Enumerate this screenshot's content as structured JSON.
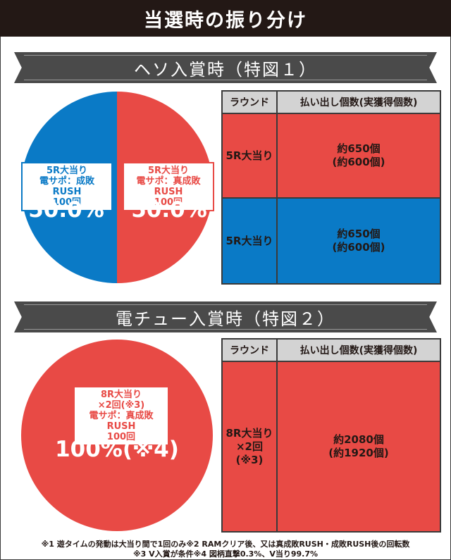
{
  "title": "当選時の振り分け",
  "section1": {
    "heading": "ヘソ入賞時（特図１）",
    "left_slice": {
      "label": "5R大当り\n電サポ：成敗RUSH\n100回",
      "percent": "50.0%",
      "share": 0.5,
      "color": "#0a7ac6"
    },
    "right_slice": {
      "label": "5R大当り\n電サポ：真成敗RUSH\n100回",
      "percent": "50.0%",
      "share": 0.5,
      "color": "#e84a45"
    },
    "table": {
      "headers": [
        "ラウンド",
        "払い出し個数(実獲得個数)"
      ],
      "rows": [
        {
          "round": "5R大当り",
          "payout": "約650個\n(約600個)",
          "color": "red"
        },
        {
          "round": "5R大当り",
          "payout": "約650個\n(約600個)",
          "color": "blue"
        }
      ]
    }
  },
  "section2": {
    "heading": "電チュー入賞時（特図２）",
    "slice": {
      "label": "8R大当り\n×2回(※3)\n電サポ：真成敗RUSH\n100回",
      "percent": "100%(※4)",
      "share": 1.0,
      "color": "#e84a45"
    },
    "table": {
      "headers": [
        "ラウンド",
        "払い出し個数(実獲得個数)"
      ],
      "rows": [
        {
          "round": "8R大当り\n×2回(※3)",
          "payout": "約2080個\n(約1920個)",
          "color": "red"
        }
      ]
    }
  },
  "footnotes": [
    "※1 遊タイムの発動は大当り間で1回のみ※2 RAMクリア後、又は真成敗RUSH・成敗RUSH後の回転数",
    "※3 V入賞が条件※4 図柄直撃0.3%、V当り99.7%"
  ]
}
